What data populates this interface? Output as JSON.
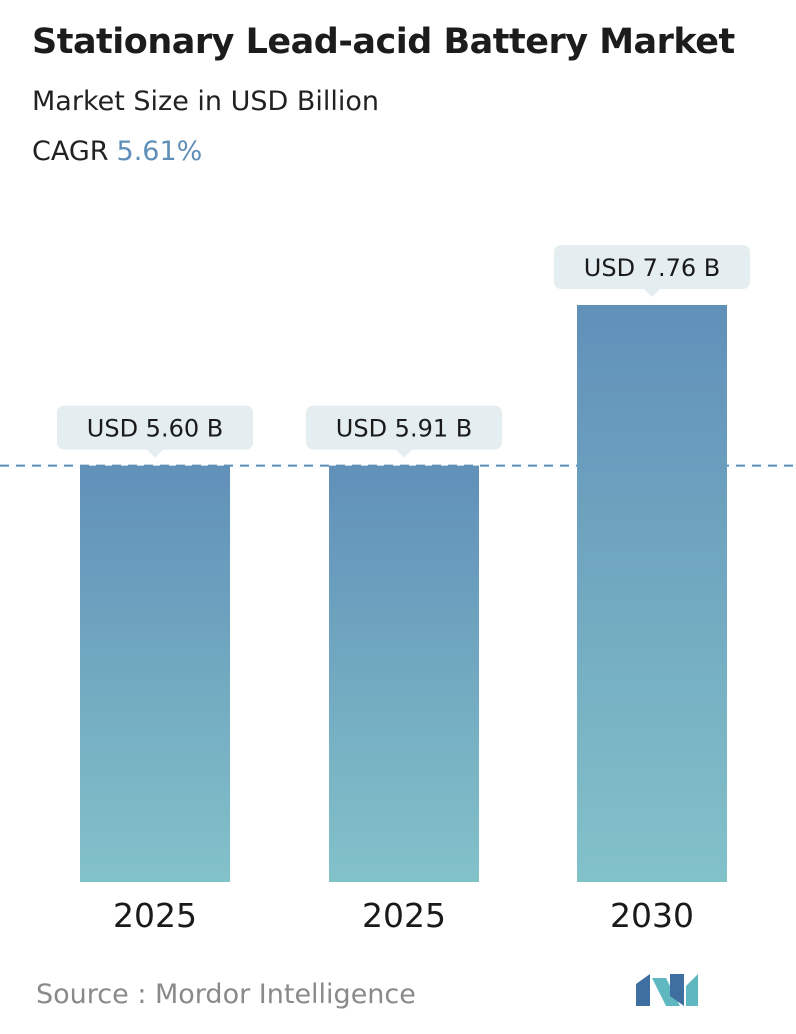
{
  "header": {
    "title": "Stationary Lead-acid Battery Market",
    "subtitle": "Market Size in USD Billion",
    "cagr_label": "CAGR",
    "cagr_value": "5.61%"
  },
  "colors": {
    "bar_top": "#6190b9",
    "bar_bottom": "#82c2c9",
    "bubble": "#e4eef1",
    "dashed_line": "#5d8cb5",
    "cagr_accent": "#5f8fb8",
    "logo_dark": "#3f6fa0",
    "logo_light": "#5fb8c0"
  },
  "chart_data": {
    "type": "bar",
    "categories": [
      "2025",
      "2025",
      "2030"
    ],
    "values": [
      5.6,
      5.91,
      7.76
    ],
    "value_labels": [
      "USD 5.60 B",
      "USD 5.91 B",
      "USD 7.76 B"
    ],
    "reference_line": "dashed horizontal line at the top of the first bars",
    "title": "",
    "xlabel": "",
    "ylabel": "",
    "grid": false,
    "legend": "none"
  },
  "footer": {
    "source": "Source :  Mordor Intelligence",
    "logo_icon": "mordor-intelligence-logo-icon"
  }
}
